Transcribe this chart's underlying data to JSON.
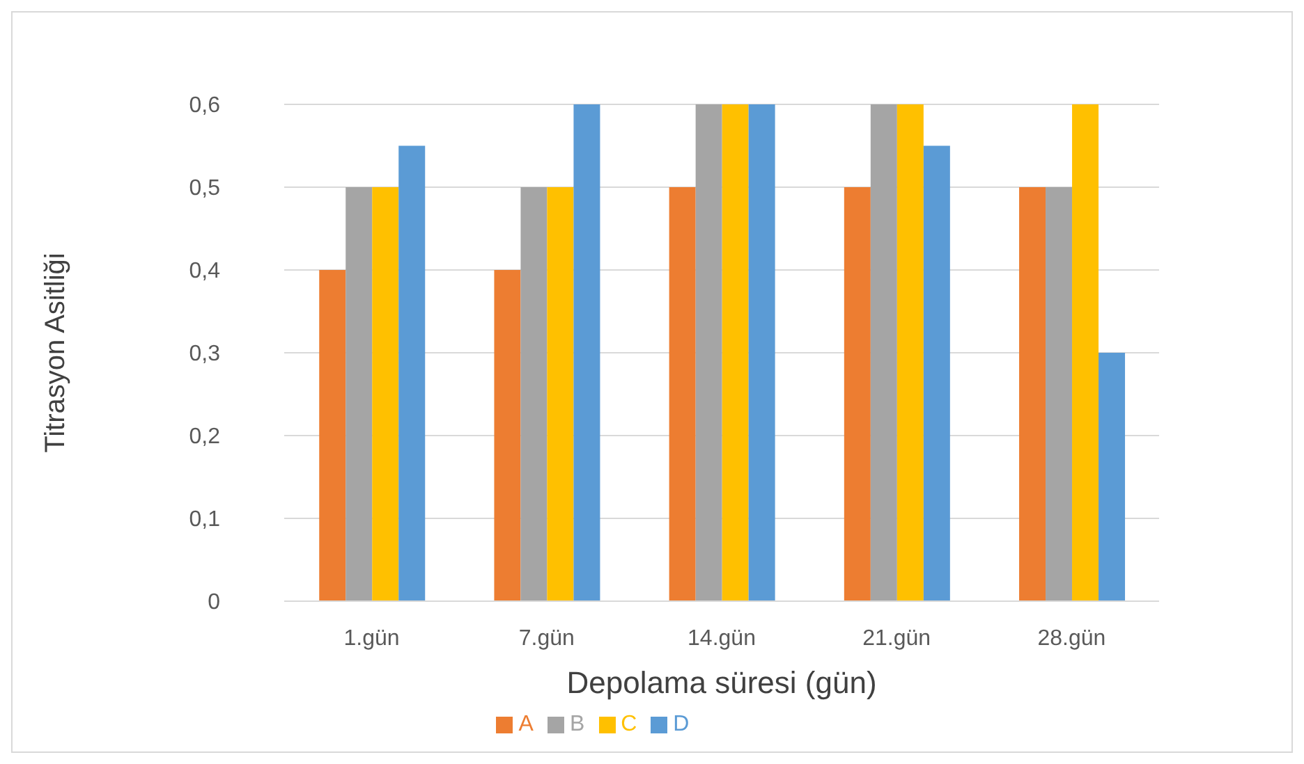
{
  "chart_data": {
    "type": "bar",
    "xlabel": "Depolama süresi (gün)",
    "ylabel": "Titrasyon Asitliği",
    "categories": [
      "1.gün",
      "7.gün",
      "14.gün",
      "21.gün",
      "28.gün"
    ],
    "series": [
      {
        "name": "A",
        "color": "#ed7d31",
        "values": [
          0.4,
          0.4,
          0.5,
          0.5,
          0.5
        ]
      },
      {
        "name": "B",
        "color": "#a5a5a5",
        "values": [
          0.5,
          0.5,
          0.6,
          0.6,
          0.5
        ]
      },
      {
        "name": "C",
        "color": "#ffc000",
        "values": [
          0.5,
          0.5,
          0.6,
          0.6,
          0.6
        ]
      },
      {
        "name": "D",
        "color": "#5b9bd5",
        "values": [
          0.55,
          0.6,
          0.6,
          0.55,
          0.3
        ]
      }
    ],
    "ylim": [
      0,
      0.6
    ],
    "yticks": [
      0,
      {
        "value": 0.1,
        "label": "0,1"
      },
      {
        "value": 0.2,
        "label": "0,2"
      },
      {
        "value": 0.3,
        "label": "0,3"
      },
      {
        "value": 0.4,
        "label": "0,4"
      },
      {
        "value": 0.5,
        "label": "0,5"
      },
      {
        "value": 0.6,
        "label": "0,6"
      }
    ],
    "grid": "y",
    "legend": "bottom"
  }
}
